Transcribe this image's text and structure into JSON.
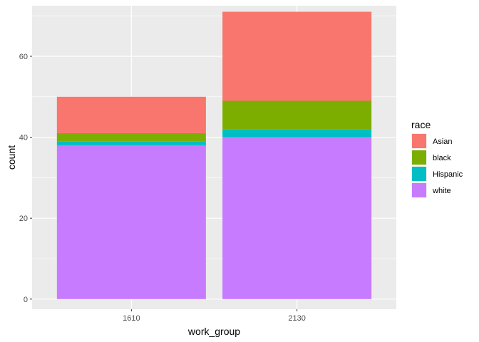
{
  "chart_data": {
    "type": "bar",
    "stacked": true,
    "xlabel": "work_group",
    "ylabel": "count",
    "categories": [
      "1610",
      "2130"
    ],
    "ylim": [
      -2.5,
      72.5
    ],
    "yticks": [
      0,
      20,
      40,
      60
    ],
    "grid": true,
    "legend": {
      "title": "race",
      "position": "right"
    },
    "series": [
      {
        "name": "white",
        "color": "#C77CFF",
        "values": [
          38,
          40
        ]
      },
      {
        "name": "Hispanic",
        "color": "#00BFC4",
        "values": [
          1,
          2
        ]
      },
      {
        "name": "black",
        "color": "#7CAE00",
        "values": [
          2,
          7
        ]
      },
      {
        "name": "Asian",
        "color": "#F8766D",
        "values": [
          9,
          22
        ]
      }
    ],
    "legend_order": [
      "Asian",
      "black",
      "Hispanic",
      "white"
    ]
  }
}
